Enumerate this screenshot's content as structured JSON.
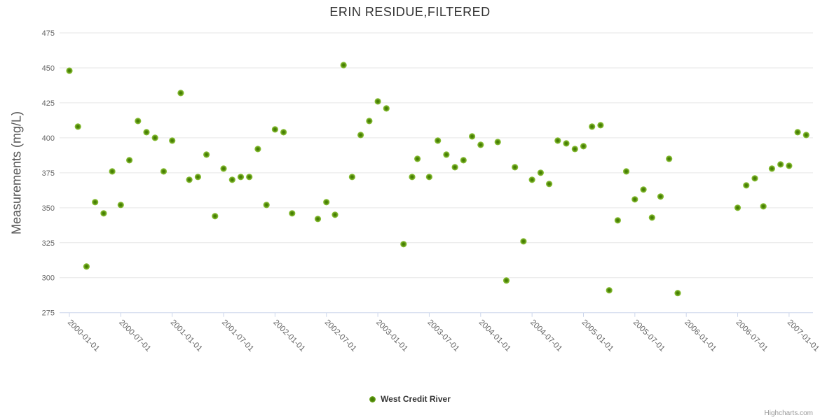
{
  "chart_data": {
    "type": "scatter",
    "title": "ERIN RESIDUE,FILTERED",
    "xlabel": "",
    "ylabel": "Measurements (mg/L)",
    "ylim": [
      275,
      475
    ],
    "y_ticks": [
      275,
      300,
      325,
      350,
      375,
      400,
      425,
      450,
      475
    ],
    "x_tick_labels": [
      "2000-01-01",
      "2000-07-01",
      "2001-01-01",
      "2001-07-01",
      "2002-01-01",
      "2002-07-01",
      "2003-01-01",
      "2003-07-01",
      "2004-01-01",
      "2004-07-01",
      "2005-01-01",
      "2005-07-01",
      "2006-01-01",
      "2006-07-01",
      "2007-01-01"
    ],
    "grid": "horizontal",
    "legend_position": "bottom-center",
    "credit": "Highcharts.com",
    "colors": {
      "marker_outer": "#8cc43c",
      "marker_inner": "#3f7a00",
      "gridline": "#e6e6e6",
      "axis_line": "#ccd6eb",
      "axis_label": "#666666",
      "title": "#333333",
      "credit": "#999999"
    },
    "series": [
      {
        "name": "West Credit River",
        "points": [
          [
            "2000-01-01",
            448
          ],
          [
            "2000-02-01",
            408
          ],
          [
            "2000-03-01",
            308
          ],
          [
            "2000-04-01",
            354
          ],
          [
            "2000-05-01",
            346
          ],
          [
            "2000-06-01",
            376
          ],
          [
            "2000-07-01",
            352
          ],
          [
            "2000-08-01",
            384
          ],
          [
            "2000-09-01",
            412
          ],
          [
            "2000-10-01",
            404
          ],
          [
            "2000-11-01",
            400
          ],
          [
            "2000-12-01",
            376
          ],
          [
            "2001-01-01",
            398
          ],
          [
            "2001-02-01",
            432
          ],
          [
            "2001-03-01",
            370
          ],
          [
            "2001-04-01",
            372
          ],
          [
            "2001-05-01",
            388
          ],
          [
            "2001-06-01",
            344
          ],
          [
            "2001-07-01",
            378
          ],
          [
            "2001-08-01",
            370
          ],
          [
            "2001-09-01",
            372
          ],
          [
            "2001-10-01",
            372
          ],
          [
            "2001-11-01",
            392
          ],
          [
            "2001-12-01",
            352
          ],
          [
            "2002-01-01",
            406
          ],
          [
            "2002-02-01",
            404
          ],
          [
            "2002-03-01",
            346
          ],
          [
            "2002-06-01",
            342
          ],
          [
            "2002-07-01",
            354
          ],
          [
            "2002-08-01",
            345
          ],
          [
            "2002-09-01",
            452
          ],
          [
            "2002-10-01",
            372
          ],
          [
            "2002-11-01",
            402
          ],
          [
            "2002-12-01",
            412
          ],
          [
            "2003-01-01",
            426
          ],
          [
            "2003-02-01",
            421
          ],
          [
            "2003-04-01",
            324
          ],
          [
            "2003-05-01",
            372
          ],
          [
            "2003-05-20",
            385
          ],
          [
            "2003-07-01",
            372
          ],
          [
            "2003-08-01",
            398
          ],
          [
            "2003-09-01",
            388
          ],
          [
            "2003-10-01",
            379
          ],
          [
            "2003-11-01",
            384
          ],
          [
            "2003-12-01",
            401
          ],
          [
            "2004-01-01",
            395
          ],
          [
            "2004-03-01",
            397
          ],
          [
            "2004-04-01",
            298
          ],
          [
            "2004-05-01",
            379
          ],
          [
            "2004-06-01",
            326
          ],
          [
            "2004-07-01",
            370
          ],
          [
            "2004-08-01",
            375
          ],
          [
            "2004-09-01",
            367
          ],
          [
            "2004-10-01",
            398
          ],
          [
            "2004-11-01",
            396
          ],
          [
            "2004-12-01",
            392
          ],
          [
            "2005-01-01",
            394
          ],
          [
            "2005-02-01",
            408
          ],
          [
            "2005-03-01",
            409
          ],
          [
            "2005-04-01",
            291
          ],
          [
            "2005-05-01",
            341
          ],
          [
            "2005-06-01",
            376
          ],
          [
            "2005-07-01",
            356
          ],
          [
            "2005-08-01",
            363
          ],
          [
            "2005-09-01",
            343
          ],
          [
            "2005-10-01",
            358
          ],
          [
            "2005-11-01",
            385
          ],
          [
            "2005-12-01",
            289
          ],
          [
            "2006-07-01",
            350
          ],
          [
            "2006-08-01",
            366
          ],
          [
            "2006-09-01",
            371
          ],
          [
            "2006-10-01",
            351
          ],
          [
            "2006-11-01",
            378
          ],
          [
            "2006-12-01",
            381
          ],
          [
            "2007-01-01",
            380
          ],
          [
            "2007-02-01",
            404
          ],
          [
            "2007-03-01",
            402
          ]
        ]
      }
    ]
  }
}
